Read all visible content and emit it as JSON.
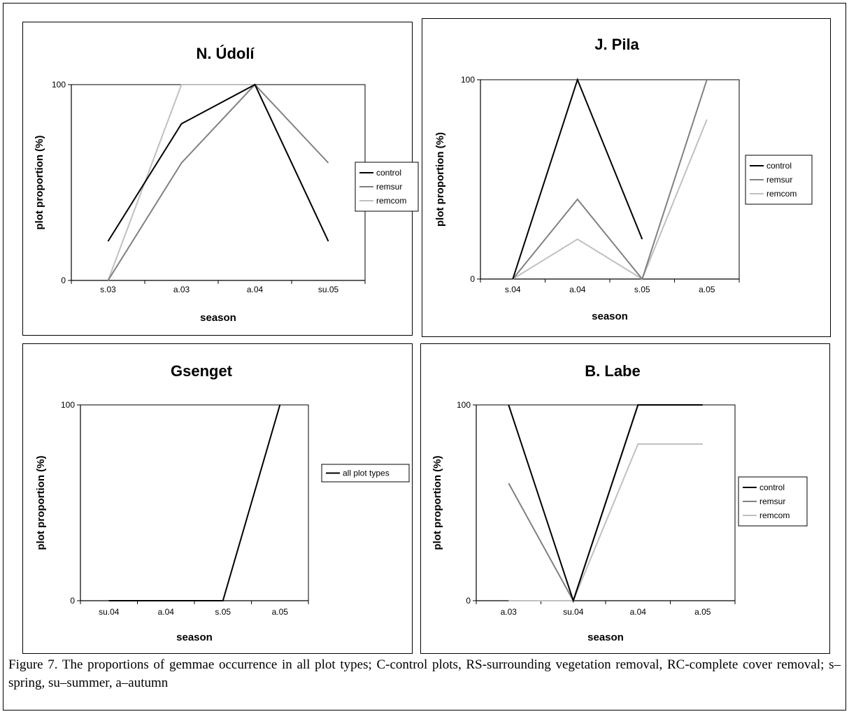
{
  "caption": "Figure 7. The proportions of gemmae occurrence in all plot types; C-control plots, RS-surrounding vegetation removal, RC-complete cover removal; s–spring, su–summer, a–autumn",
  "colors": {
    "control": "#000000",
    "remsur": "#808080",
    "remcom": "#c0c0c0"
  },
  "chart_data": [
    {
      "type": "line",
      "title": "N. Údolí",
      "xlabel": "season",
      "ylabel": "plot proportion (%)",
      "categories": [
        "s.03",
        "a.03",
        "a.04",
        "su.05"
      ],
      "yticks": [
        "0",
        "100"
      ],
      "ylim": [
        0,
        100
      ],
      "legend": "right",
      "series": [
        {
          "name": "control",
          "values": [
            20,
            80,
            100,
            20
          ]
        },
        {
          "name": "remsur",
          "values": [
            0,
            60,
            100,
            60
          ]
        },
        {
          "name": "remcom",
          "values": [
            0,
            100,
            100,
            20
          ]
        }
      ]
    },
    {
      "type": "line",
      "title": "J. Pila",
      "xlabel": "season",
      "ylabel": "plot proportion (%)",
      "categories": [
        "s.04",
        "a.04",
        "s.05",
        "a.05"
      ],
      "yticks": [
        "0",
        "100"
      ],
      "ylim": [
        0,
        100
      ],
      "legend": "right",
      "series": [
        {
          "name": "control",
          "values": [
            0,
            100,
            20,
            null
          ]
        },
        {
          "name": "remsur",
          "values": [
            0,
            40,
            0,
            100
          ]
        },
        {
          "name": "remcom",
          "values": [
            0,
            20,
            0,
            80
          ]
        }
      ]
    },
    {
      "type": "line",
      "title": "Gsenget",
      "xlabel": "season",
      "ylabel": "plot proportion (%)",
      "categories": [
        "su.04",
        "a.04",
        "s.05",
        "a.05"
      ],
      "yticks": [
        "0",
        "100"
      ],
      "ylim": [
        0,
        100
      ],
      "legend": "right",
      "series": [
        {
          "name": "all plot types",
          "values": [
            0,
            0,
            0,
            100
          ]
        }
      ]
    },
    {
      "type": "line",
      "title": "B. Labe",
      "xlabel": "season",
      "ylabel": "plot proportion (%)",
      "categories": [
        "a.03",
        "su.04",
        "a.04",
        "a.05"
      ],
      "yticks": [
        "0",
        "100"
      ],
      "ylim": [
        0,
        100
      ],
      "legend": "right",
      "series": [
        {
          "name": "control",
          "values": [
            100,
            0,
            100,
            100
          ]
        },
        {
          "name": "remsur",
          "values": [
            60,
            0,
            100,
            100
          ]
        },
        {
          "name": "remcom",
          "values": [
            0,
            0,
            80,
            80
          ]
        }
      ]
    }
  ]
}
